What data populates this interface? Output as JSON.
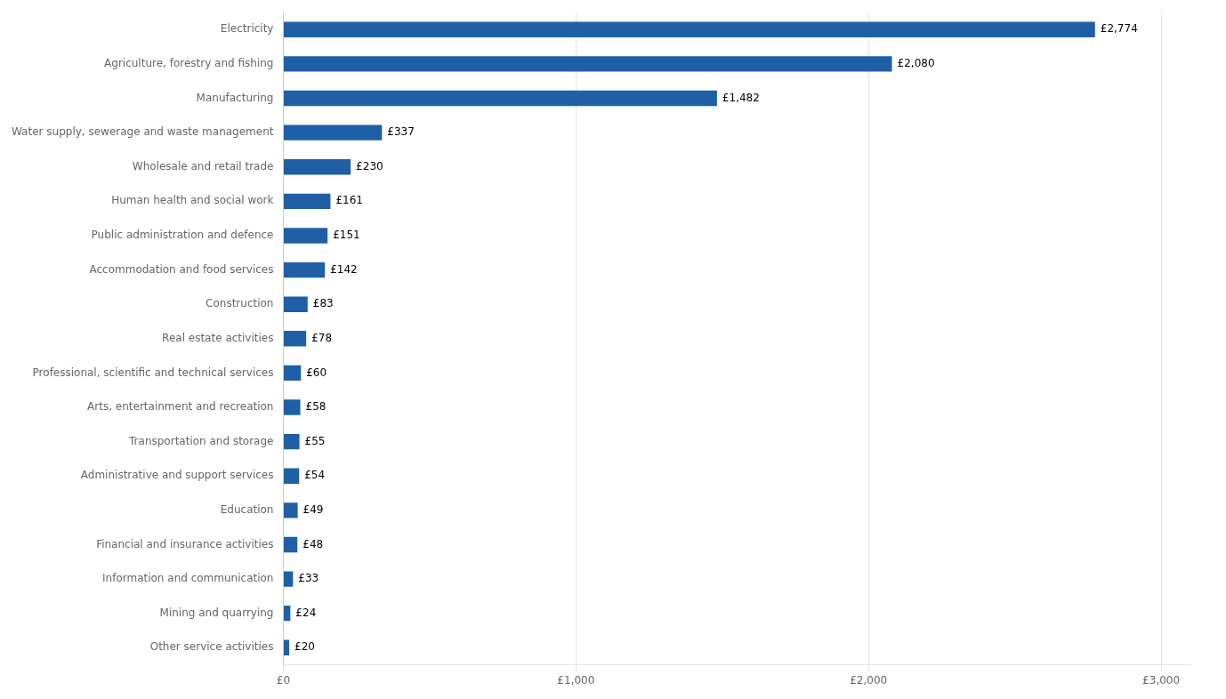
{
  "chart_data": {
    "type": "bar",
    "orientation": "horizontal",
    "categories": [
      "Other service activities",
      "Mining and quarrying",
      "Information and communication",
      "Financial and insurance activities",
      "Education",
      "Administrative and support services",
      "Transportation and storage",
      "Arts, entertainment and recreation",
      "Professional, scientific and technical services",
      "Real estate activities",
      "Construction",
      "Accommodation and food services",
      "Public administration and defence",
      "Human health and social work",
      "Wholesale and retail trade",
      "Water supply, sewerage and waste management",
      "Manufacturing",
      "Agriculture, forestry and fishing",
      "Electricity"
    ],
    "values": [
      20,
      24,
      33,
      48,
      49,
      54,
      55,
      58,
      60,
      78,
      83,
      142,
      151,
      161,
      230,
      337,
      1482,
      2080,
      2774
    ],
    "value_labels": [
      "£20",
      "£24",
      "£33",
      "£48",
      "£49",
      "£54",
      "£55",
      "£58",
      "£60",
      "£78",
      "£83",
      "£142",
      "£151",
      "£161",
      "£230",
      "£337",
      "£1,482",
      "£2,080",
      "£2,774"
    ],
    "data_labels": true,
    "color": "#1F5FA6",
    "xlim": [
      0,
      3100
    ],
    "xticks": [
      {
        "value": 0,
        "label": "£0"
      },
      {
        "value": 1000,
        "label": "£1,000"
      },
      {
        "value": 2000,
        "label": "£2,000"
      },
      {
        "value": 3000,
        "label": "£3,000"
      }
    ],
    "grid": true
  }
}
